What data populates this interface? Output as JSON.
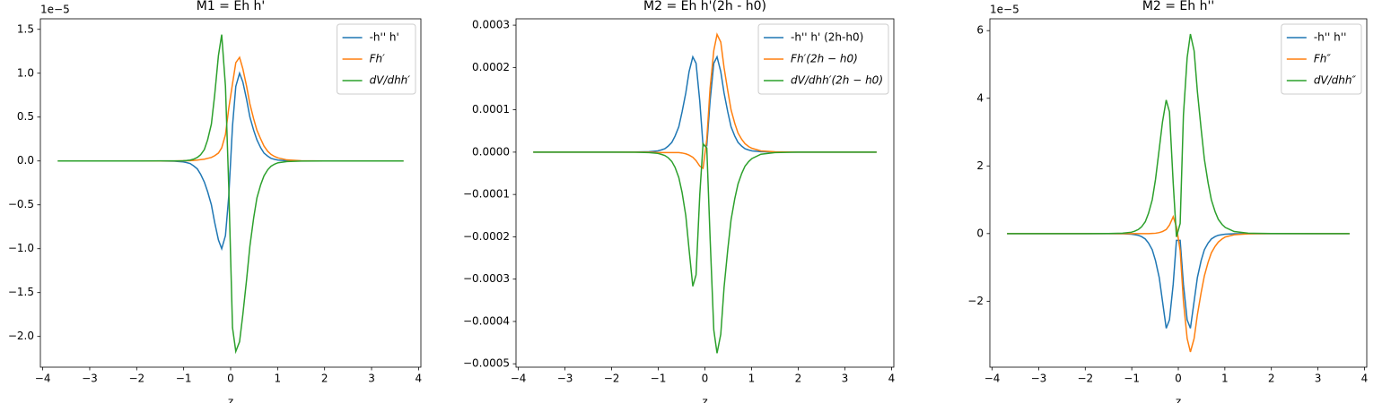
{
  "chart_data": [
    {
      "type": "line",
      "title": "M1 = Eh h'",
      "x_label": "z",
      "offset_text": "1e−5",
      "legend": "upper right",
      "x": [
        -3.68,
        -3,
        -2,
        -1.5,
        -1.2,
        -1.01,
        -0.94,
        -0.86,
        -0.79,
        -0.71,
        -0.64,
        -0.56,
        -0.49,
        -0.41,
        -0.34,
        -0.26,
        -0.19,
        -0.11,
        -0.04,
        0.04,
        0.11,
        0.19,
        0.26,
        0.34,
        0.41,
        0.49,
        0.56,
        0.64,
        0.71,
        0.79,
        0.86,
        0.94,
        1.01,
        1.2,
        1.5,
        2,
        3,
        3.68
      ],
      "xlim": [
        -4.05,
        4.05
      ],
      "xticks": [
        {
          "value": -4,
          "label": "−4"
        },
        {
          "value": -3,
          "label": "−3"
        },
        {
          "value": -2,
          "label": "−2"
        },
        {
          "value": -1,
          "label": "−1"
        },
        0,
        1,
        2,
        3,
        4
      ],
      "ylim": [
        -2.35,
        1.62
      ],
      "yticks": [
        {
          "value": -2,
          "label": "−2.0"
        },
        {
          "value": -1.5,
          "label": "−1.5"
        },
        {
          "value": -1,
          "label": "−1.0"
        },
        {
          "value": -0.5,
          "label": "−0.5"
        },
        {
          "value": 0,
          "label": "0.0"
        },
        0.5,
        {
          "value": 1,
          "label": "1.0"
        },
        1.5
      ],
      "series": [
        {
          "name": "-h'' h'",
          "math": false,
          "color": "#1f77b4",
          "values": [
            0,
            0,
            0,
            -0.0005,
            -0.003,
            -0.01,
            -0.018,
            -0.03,
            -0.055,
            -0.09,
            -0.15,
            -0.24,
            -0.35,
            -0.5,
            -0.7,
            -0.9,
            -1.0,
            -0.85,
            -0.4,
            0.4,
            0.85,
            1.0,
            0.9,
            0.7,
            0.5,
            0.35,
            0.24,
            0.15,
            0.09,
            0.055,
            0.03,
            0.018,
            0.01,
            0.003,
            0.0005,
            0,
            0,
            0
          ]
        },
        {
          "name": "Fh′",
          "math": true,
          "color": "#ff7f0e",
          "values": [
            0,
            0,
            0,
            0,
            0,
            0.002,
            0.003,
            0.004,
            0.006,
            0.01,
            0.015,
            0.02,
            0.03,
            0.04,
            0.06,
            0.09,
            0.15,
            0.3,
            0.6,
            0.88,
            1.12,
            1.18,
            1.05,
            0.85,
            0.65,
            0.48,
            0.35,
            0.25,
            0.17,
            0.11,
            0.075,
            0.05,
            0.035,
            0.012,
            0.003,
            0,
            0,
            0
          ]
        },
        {
          "name": "dV/dhh′",
          "math": true,
          "color": "#2ca02c",
          "values": [
            0,
            0,
            0,
            0.001,
            0.001,
            0.003,
            0.005,
            0.01,
            0.02,
            0.04,
            0.07,
            0.13,
            0.24,
            0.42,
            0.75,
            1.2,
            1.44,
            0.85,
            -0.3,
            -1.9,
            -2.17,
            -2.06,
            -1.75,
            -1.35,
            -0.97,
            -0.65,
            -0.42,
            -0.27,
            -0.17,
            -0.1,
            -0.06,
            -0.035,
            -0.02,
            -0.006,
            -0.001,
            0,
            0,
            0
          ]
        }
      ]
    },
    {
      "type": "line",
      "title": "M2 = Eh h'(2h - h0)",
      "x_label": "z",
      "legend": "upper right",
      "x": [
        -3.68,
        -3,
        -2,
        -1.5,
        -1.2,
        -1.01,
        -0.94,
        -0.86,
        -0.79,
        -0.71,
        -0.64,
        -0.56,
        -0.49,
        -0.41,
        -0.34,
        -0.26,
        -0.19,
        -0.11,
        -0.04,
        0.04,
        0.11,
        0.19,
        0.26,
        0.34,
        0.41,
        0.49,
        0.56,
        0.64,
        0.71,
        0.79,
        0.86,
        0.94,
        1.01,
        1.2,
        1.5,
        2,
        3,
        3.68
      ],
      "xlim": [
        -4.05,
        4.05
      ],
      "xticks": [
        {
          "value": -4,
          "label": "−4"
        },
        {
          "value": -3,
          "label": "−3"
        },
        {
          "value": -2,
          "label": "−2"
        },
        {
          "value": -1,
          "label": "−1"
        },
        0,
        1,
        2,
        3,
        4
      ],
      "ylim": [
        -0.000508,
        0.000315
      ],
      "yticks": [
        {
          "value": -0.0005,
          "label": "−0.0005"
        },
        {
          "value": -0.0004,
          "label": "−0.0004"
        },
        {
          "value": -0.0003,
          "label": "−0.0003"
        },
        {
          "value": -0.0002,
          "label": "−0.0002"
        },
        {
          "value": -0.0001,
          "label": "−0.0001"
        },
        {
          "value": 0,
          "label": "0.0000"
        },
        0.0001,
        0.0002,
        0.0003
      ],
      "series": [
        {
          "name": "-h'' h' (2h-h0)",
          "math": false,
          "color": "#1f77b4",
          "values": [
            0,
            0,
            0,
            2e-07,
            1e-06,
            3e-06,
            5e-06,
            8e-06,
            1.4e-05,
            2.3e-05,
            3.8e-05,
            6e-05,
            9.5e-05,
            0.00014,
            0.00019,
            0.000225,
            0.00021,
            0.00012,
            1.5e-05,
            1.5e-05,
            0.00012,
            0.00021,
            0.000225,
            0.00019,
            0.00014,
            9.5e-05,
            6e-05,
            3.8e-05,
            2.3e-05,
            1.4e-05,
            8e-06,
            5e-06,
            3e-06,
            1e-06,
            2e-07,
            0,
            0,
            0
          ]
        },
        {
          "name": "Fh′(2h − h0)",
          "math": true,
          "color": "#ff7f0e",
          "values": [
            0,
            0,
            0,
            0,
            0,
            -1e-06,
            -1e-06,
            -1e-06,
            -1e-06,
            -1e-06,
            -1e-06,
            -1e-06,
            -2e-06,
            -4e-06,
            -7e-06,
            -1.2e-05,
            -2e-05,
            -3.3e-05,
            -3.8e-05,
            3e-05,
            0.00015,
            0.00024,
            0.000278,
            0.00026,
            0.0002,
            0.000145,
            0.0001,
            6.8e-05,
            4.5e-05,
            3e-05,
            2e-05,
            1.3e-05,
            9e-06,
            3e-06,
            7e-07,
            0,
            0,
            0
          ]
        },
        {
          "name": "dV/dhh′(2h − h0)",
          "math": true,
          "color": "#2ca02c",
          "values": [
            0,
            0,
            0,
            -2e-07,
            -1e-06,
            -3e-06,
            -5e-06,
            -8e-06,
            -1.3e-05,
            -2.2e-05,
            -3.6e-05,
            -6e-05,
            -9.5e-05,
            -0.00015,
            -0.00023,
            -0.000317,
            -0.00029,
            -0.0001,
            2e-05,
            1e-05,
            -0.0002,
            -0.00042,
            -0.000475,
            -0.00043,
            -0.00032,
            -0.00023,
            -0.00016,
            -0.00011,
            -7.5e-05,
            -5e-05,
            -3.3e-05,
            -2.2e-05,
            -1.5e-05,
            -5e-06,
            -1e-06,
            0,
            0,
            0
          ]
        }
      ]
    },
    {
      "type": "line",
      "title": "M2 = Eh h''",
      "x_label": "z",
      "offset_text": "1e−5",
      "legend": "upper right",
      "x": [
        -3.68,
        -3,
        -2,
        -1.5,
        -1.2,
        -1.01,
        -0.94,
        -0.86,
        -0.79,
        -0.71,
        -0.64,
        -0.56,
        -0.49,
        -0.41,
        -0.34,
        -0.26,
        -0.19,
        -0.11,
        -0.04,
        0.04,
        0.11,
        0.19,
        0.26,
        0.34,
        0.41,
        0.49,
        0.56,
        0.64,
        0.71,
        0.79,
        0.86,
        0.94,
        1.01,
        1.2,
        1.5,
        2,
        3,
        3.68
      ],
      "xlim": [
        -4.05,
        4.05
      ],
      "xticks": [
        {
          "value": -4,
          "label": "−4"
        },
        {
          "value": -3,
          "label": "−3"
        },
        {
          "value": -2,
          "label": "−2"
        },
        {
          "value": -1,
          "label": "−1"
        },
        0,
        1,
        2,
        3,
        4
      ],
      "ylim": [
        -3.95,
        6.35
      ],
      "yticks": [
        {
          "value": -2,
          "label": "−2"
        },
        0,
        2,
        4,
        6
      ],
      "series": [
        {
          "name": "-h'' h''",
          "math": false,
          "color": "#1f77b4",
          "values": [
            0,
            0,
            0,
            -0.001,
            -0.005,
            -0.017,
            -0.03,
            -0.05,
            -0.09,
            -0.16,
            -0.28,
            -0.48,
            -0.8,
            -1.3,
            -2.0,
            -2.8,
            -2.55,
            -1.5,
            -0.2,
            -0.2,
            -1.5,
            -2.55,
            -2.8,
            -2.0,
            -1.3,
            -0.8,
            -0.48,
            -0.28,
            -0.16,
            -0.09,
            -0.05,
            -0.03,
            -0.017,
            -0.005,
            -0.001,
            0,
            0,
            0
          ]
        },
        {
          "name": "Fh″",
          "math": true,
          "color": "#ff7f0e",
          "values": [
            0,
            0,
            0,
            0,
            0,
            0,
            0,
            0,
            0,
            0,
            0,
            0.005,
            0.01,
            0.03,
            0.06,
            0.12,
            0.25,
            0.5,
            0.2,
            -0.5,
            -2.0,
            -3.1,
            -3.5,
            -3.1,
            -2.4,
            -1.75,
            -1.25,
            -0.85,
            -0.57,
            -0.38,
            -0.25,
            -0.16,
            -0.1,
            -0.035,
            -0.008,
            -0.001,
            0,
            0
          ]
        },
        {
          "name": "dV/dhh″",
          "math": true,
          "color": "#2ca02c",
          "values": [
            0,
            0,
            0,
            0.002,
            0.012,
            0.04,
            0.07,
            0.12,
            0.2,
            0.35,
            0.6,
            1.0,
            1.6,
            2.5,
            3.3,
            3.95,
            3.6,
            1.5,
            -0.1,
            0.3,
            3.5,
            5.2,
            5.9,
            5.4,
            4.2,
            3.1,
            2.2,
            1.5,
            1.0,
            0.65,
            0.42,
            0.27,
            0.18,
            0.06,
            0.012,
            0.001,
            0,
            0
          ]
        }
      ]
    }
  ]
}
